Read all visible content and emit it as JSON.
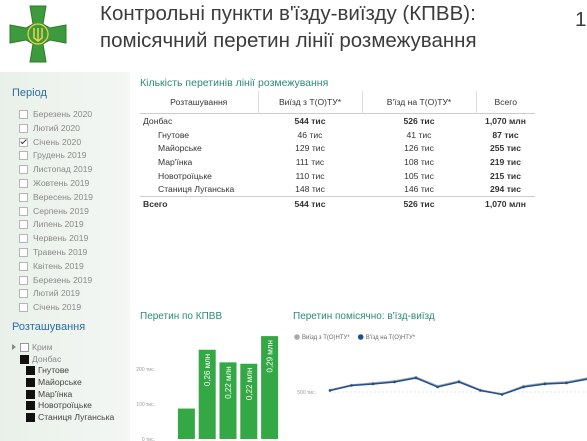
{
  "header": {
    "title_line1": "Контрольні пункти в'їзду-виїзду (КПВВ):",
    "title_line2": "помісячний перетин лінії розмежування",
    "page_number": "1"
  },
  "filters": {
    "period": {
      "title": "Період",
      "items": [
        {
          "label": "Березень 2020",
          "checked": false
        },
        {
          "label": "Лютий 2020",
          "checked": false
        },
        {
          "label": "Січень 2020",
          "checked": true
        },
        {
          "label": "Грудень 2019",
          "checked": false
        },
        {
          "label": "Листопад 2019",
          "checked": false
        },
        {
          "label": "Жовтень 2019",
          "checked": false
        },
        {
          "label": "Вересень 2019",
          "checked": false
        },
        {
          "label": "Серпень 2019",
          "checked": false
        },
        {
          "label": "Липень 2019",
          "checked": false
        },
        {
          "label": "Червень 2019",
          "checked": false
        },
        {
          "label": "Травень 2019",
          "checked": false
        },
        {
          "label": "Квітень 2019",
          "checked": false
        },
        {
          "label": "Березень 2019",
          "checked": false
        },
        {
          "label": "Лютий 2019",
          "checked": false
        },
        {
          "label": "Січень 2019",
          "checked": false
        }
      ]
    },
    "location": {
      "title": "Розташування",
      "items": [
        {
          "label": "Крим",
          "selected": false,
          "children": []
        },
        {
          "label": "Донбас",
          "selected": true,
          "children": [
            {
              "label": "Гнутове",
              "selected": true
            },
            {
              "label": "Майорське",
              "selected": true
            },
            {
              "label": "Мар'їнка",
              "selected": true
            },
            {
              "label": "Новотроїцьке",
              "selected": true
            },
            {
              "label": "Станиця Луганська",
              "selected": true
            }
          ]
        }
      ]
    }
  },
  "table": {
    "title": "Кількість перетинів лінії розмежування",
    "columns": [
      "Розташування",
      "Виїзд з Т(О)ТУ*",
      "В'їзд на Т(О)ТУ*",
      "Всего"
    ],
    "rows": [
      {
        "cells": [
          "Донбас",
          "544 тис",
          "526 тис",
          "1,070 млн"
        ],
        "child": false
      },
      {
        "cells": [
          "Гнутове",
          "46 тис",
          "41 тис",
          "87 тис"
        ],
        "child": true
      },
      {
        "cells": [
          "Майорське",
          "129 тис",
          "126 тис",
          "255 тис"
        ],
        "child": true
      },
      {
        "cells": [
          "Мар'їнка",
          "111 тис",
          "108 тис",
          "219 тис"
        ],
        "child": true
      },
      {
        "cells": [
          "Новотроїцьке",
          "110 тис",
          "105 тис",
          "215 тис"
        ],
        "child": true
      },
      {
        "cells": [
          "Станиця Луганська",
          "148 тис",
          "146 тис",
          "294 тис"
        ],
        "child": true
      }
    ],
    "total": [
      "Всего",
      "544 тис",
      "526 тис",
      "1,070 млн"
    ]
  },
  "chart_data": [
    {
      "type": "bar",
      "title": "Перетин по КПВВ",
      "values": [
        87,
        255,
        219,
        215,
        294
      ],
      "value_labels": [
        null,
        "0,26 млн",
        "0,22 млн",
        "0,22 млн",
        "0,29 млн"
      ],
      "color": "#34a844",
      "ylim": [
        0,
        300
      ],
      "yticks": [
        {
          "value": 0,
          "label": "0 тис."
        },
        {
          "value": 100,
          "label": "100 тис."
        },
        {
          "value": 200,
          "label": "200 тис."
        }
      ],
      "grid": false
    },
    {
      "type": "line",
      "title": "Перетин помісячно: в'їзд-виїзд",
      "series": [
        {
          "name": "Виїзд з Т(О)НТУ*",
          "color": "#a9a9a9",
          "values": [
            508,
            528,
            536,
            544,
            560,
            524,
            544,
            508,
            492,
            524,
            536,
            540,
            556
          ]
        },
        {
          "name": "В'їзд на Т(О)НТУ*",
          "color": "#1f4f8f",
          "values": [
            506,
            526,
            532,
            540,
            556,
            520,
            540,
            506,
            490,
            520,
            532,
            536,
            552
          ]
        }
      ],
      "ylim": [
        400,
        800
      ],
      "yticks": [
        {
          "value": 500,
          "label": "500 тис."
        }
      ],
      "grid": true
    }
  ]
}
